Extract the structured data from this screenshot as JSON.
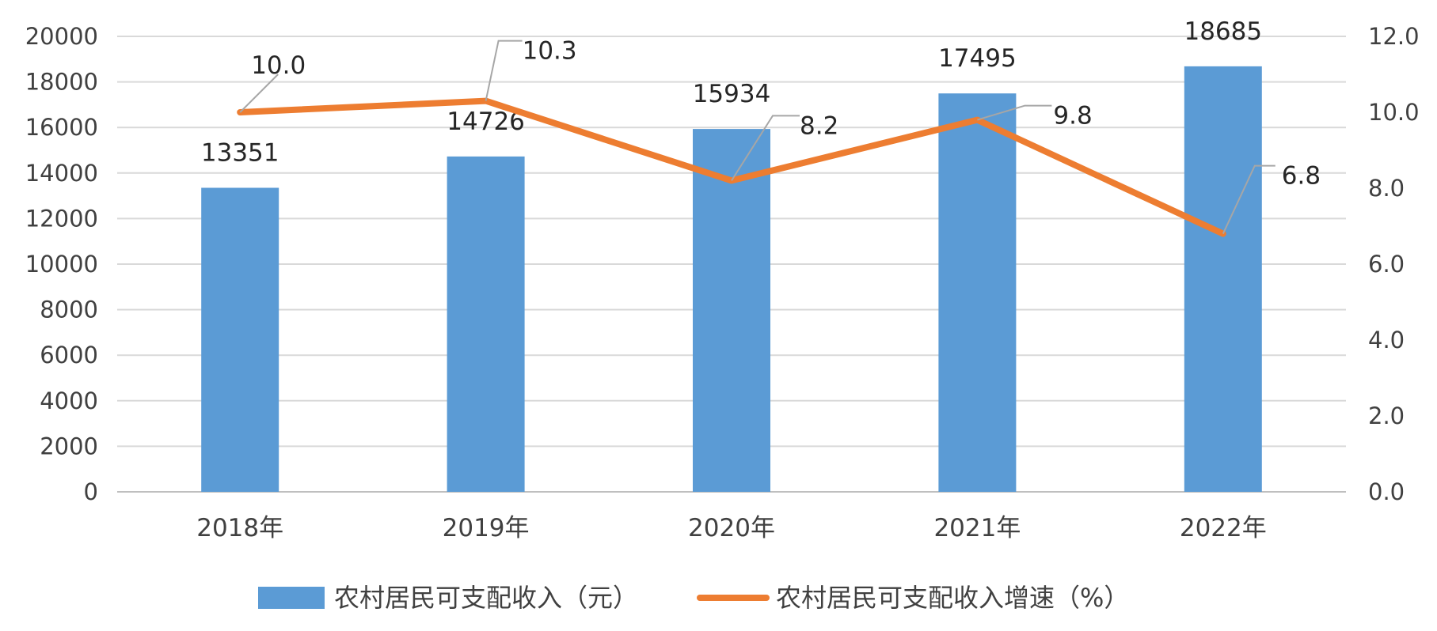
{
  "chart_data": {
    "type": "bar",
    "categories": [
      "2018年",
      "2019年",
      "2020年",
      "2021年",
      "2022年"
    ],
    "series": [
      {
        "name": "农村居民可支配收入（元）",
        "type": "bar",
        "axis": "left",
        "color": "#5B9BD5",
        "values": [
          13351,
          14726,
          15934,
          17495,
          18685
        ]
      },
      {
        "name": "农村居民可支配收入增速（%）",
        "type": "line",
        "axis": "right",
        "color": "#ED7D31",
        "values": [
          10.0,
          10.3,
          8.2,
          9.8,
          6.8
        ]
      }
    ],
    "bar_labels": [
      "13351",
      "14726",
      "15934",
      "17495",
      "18685"
    ],
    "line_labels": [
      "10.0",
      "10.3",
      "8.2",
      "9.8",
      "6.8"
    ],
    "y_left": {
      "min": 0,
      "max": 20000,
      "step": 2000,
      "ticks": [
        "0",
        "2000",
        "4000",
        "6000",
        "8000",
        "10000",
        "12000",
        "14000",
        "16000",
        "18000",
        "20000"
      ]
    },
    "y_right": {
      "min": 0,
      "max": 12,
      "step": 2,
      "ticks": [
        "0.0",
        "2.0",
        "4.0",
        "6.0",
        "8.0",
        "10.0",
        "12.0"
      ]
    },
    "grid": true,
    "legend_position": "bottom",
    "title": "",
    "xlabel": "",
    "ylabel": ""
  }
}
